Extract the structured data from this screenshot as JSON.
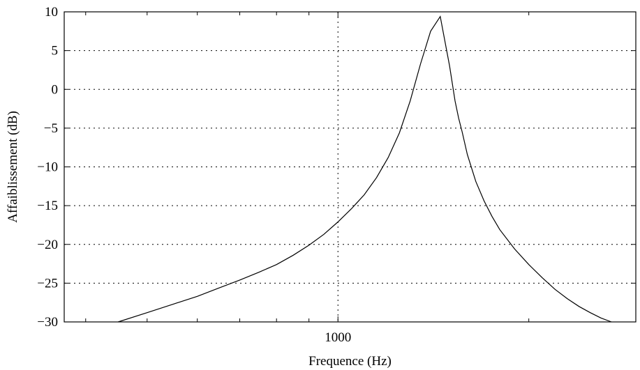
{
  "chart_data": {
    "type": "line",
    "title": "",
    "xlabel": "Frequence (Hz)",
    "ylabel": "Affaiblissement (dB)",
    "x_scale": "log",
    "xlim": [
      370,
      2950
    ],
    "ylim": [
      -30,
      10
    ],
    "grid": true,
    "x_tick_values": [
      1000
    ],
    "x_tick_labels": [
      "1000"
    ],
    "x_minor_ticks": [
      400,
      500,
      600,
      700,
      800,
      900,
      2000
    ],
    "y_ticks": [
      10,
      5,
      0,
      -5,
      -10,
      -15,
      -20,
      -25,
      -30
    ],
    "y_tick_labels": [
      "10",
      "5",
      "0",
      "−5",
      "−10",
      "−15",
      "−20",
      "−25",
      "−30"
    ],
    "series": [
      {
        "x": [
          450,
          500,
          550,
          600,
          650,
          700,
          750,
          800,
          850,
          900,
          950,
          1000,
          1050,
          1100,
          1150,
          1200,
          1250,
          1300,
          1350,
          1400,
          1450,
          1500,
          1530,
          1550,
          1570,
          1600,
          1650,
          1700,
          1750,
          1800,
          1900,
          2000,
          2100,
          2200,
          2300,
          2400,
          2500,
          2600,
          2700
        ],
        "y": [
          -30,
          -28.8,
          -27.7,
          -26.7,
          -25.6,
          -24.6,
          -23.6,
          -22.6,
          -21.4,
          -20.1,
          -18.7,
          -17.1,
          -15.4,
          -13.6,
          -11.4,
          -8.8,
          -5.6,
          -1.5,
          3.3,
          7.5,
          9.4,
          3.0,
          -1.5,
          -3.7,
          -5.5,
          -8.4,
          -11.9,
          -14.4,
          -16.4,
          -18.1,
          -20.6,
          -22.6,
          -24.3,
          -25.8,
          -27.0,
          -28.0,
          -28.8,
          -29.5,
          -30
        ]
      }
    ]
  }
}
